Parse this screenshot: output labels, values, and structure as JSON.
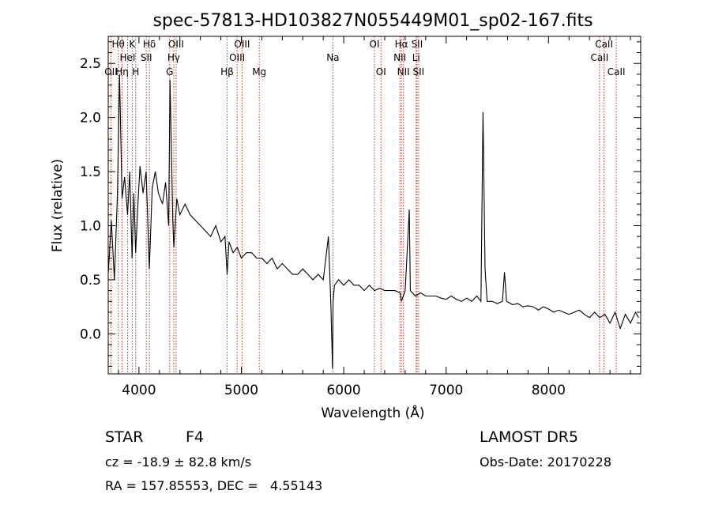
{
  "chart_data": {
    "type": "line",
    "title": "spec-57813-HD103827N055449M01_sp02-167.fits",
    "xlabel": "Wavelength (Å)",
    "ylabel": "Flux (relative)",
    "xlim": [
      3700,
      8900
    ],
    "ylim": [
      -0.37,
      2.75
    ],
    "xticks": [
      4000,
      5000,
      6000,
      7000,
      8000
    ],
    "xtick_labels": [
      "4000",
      "5000",
      "6000",
      "7000",
      "8000"
    ],
    "yticks": [
      0.0,
      0.5,
      1.0,
      1.5,
      2.0,
      2.5
    ],
    "ytick_labels": [
      "0.0",
      "0.5",
      "1.0",
      "1.5",
      "2.0",
      "2.5"
    ],
    "grid": false,
    "line_color": "#000000",
    "marker_color": "#c0392b",
    "series": [
      {
        "x": [
          3700,
          3730,
          3760,
          3790,
          3810,
          3835,
          3860,
          3889,
          3910,
          3933,
          3950,
          3968,
          3990,
          4010,
          4040,
          4070,
          4101,
          4130,
          4160,
          4190,
          4230,
          4260,
          4290,
          4303,
          4330,
          4340,
          4370,
          4400,
          4450,
          4500,
          4550,
          4600,
          4650,
          4700,
          4750,
          4800,
          4840,
          4861,
          4880,
          4920,
          4960,
          5000,
          5050,
          5100,
          5150,
          5200,
          5250,
          5300,
          5350,
          5400,
          5450,
          5500,
          5550,
          5600,
          5650,
          5700,
          5750,
          5800,
          5850,
          5875,
          5890,
          5896,
          5910,
          5950,
          6000,
          6050,
          6100,
          6150,
          6200,
          6250,
          6300,
          6350,
          6400,
          6450,
          6500,
          6550,
          6563,
          6600,
          6640,
          6650,
          6700,
          6750,
          6800,
          6850,
          6900,
          6950,
          7000,
          7050,
          7100,
          7150,
          7200,
          7250,
          7300,
          7340,
          7360,
          7380,
          7400,
          7450,
          7500,
          7550,
          7570,
          7590,
          7650,
          7700,
          7750,
          7800,
          7850,
          7900,
          7950,
          8000,
          8050,
          8100,
          8150,
          8200,
          8250,
          8300,
          8350,
          8400,
          8450,
          8500,
          8550,
          8600,
          8650,
          8700,
          8750,
          8800,
          8850,
          8880
        ],
        "y": [
          0.55,
          1.05,
          0.5,
          1.3,
          2.4,
          1.25,
          1.45,
          1.1,
          1.5,
          0.7,
          1.3,
          0.75,
          1.2,
          1.55,
          1.3,
          1.5,
          0.6,
          1.35,
          1.5,
          1.3,
          1.2,
          1.4,
          1.0,
          2.35,
          1.05,
          0.8,
          1.25,
          1.1,
          1.2,
          1.1,
          1.05,
          1.0,
          0.95,
          0.9,
          1.0,
          0.85,
          0.9,
          0.55,
          0.85,
          0.75,
          0.8,
          0.7,
          0.75,
          0.75,
          0.7,
          0.7,
          0.65,
          0.7,
          0.6,
          0.65,
          0.6,
          0.55,
          0.55,
          0.6,
          0.55,
          0.5,
          0.55,
          0.5,
          0.9,
          0.25,
          -0.32,
          0.3,
          0.45,
          0.5,
          0.45,
          0.5,
          0.45,
          0.45,
          0.4,
          0.45,
          0.4,
          0.42,
          0.4,
          0.4,
          0.4,
          0.38,
          0.3,
          0.4,
          1.15,
          0.4,
          0.35,
          0.38,
          0.35,
          0.35,
          0.35,
          0.33,
          0.32,
          0.35,
          0.32,
          0.3,
          0.33,
          0.3,
          0.35,
          0.3,
          2.05,
          0.6,
          0.3,
          0.3,
          0.28,
          0.3,
          0.57,
          0.3,
          0.27,
          0.28,
          0.25,
          0.26,
          0.25,
          0.22,
          0.25,
          0.23,
          0.2,
          0.22,
          0.2,
          0.18,
          0.2,
          0.22,
          0.18,
          0.15,
          0.2,
          0.15,
          0.18,
          0.1,
          0.2,
          0.05,
          0.18,
          0.1,
          0.2,
          0.15
        ]
      }
    ],
    "lines": [
      {
        "w": 3727,
        "label": "OII",
        "row": 3
      },
      {
        "w": 3798,
        "label": "Hθ",
        "row": 1
      },
      {
        "w": 3835,
        "label": "Hη",
        "row": 3
      },
      {
        "w": 3889,
        "label": "HeI",
        "row": 2
      },
      {
        "w": 3934,
        "label": "K",
        "row": 1
      },
      {
        "w": 3968,
        "label": "H",
        "row": 3
      },
      {
        "w": 4072,
        "label": "SII",
        "row": 2
      },
      {
        "w": 4102,
        "label": "Hδ",
        "row": 1
      },
      {
        "w": 4300,
        "label": "G",
        "row": 3
      },
      {
        "w": 4340,
        "label": "Hγ",
        "row": 2
      },
      {
        "w": 4363,
        "label": "OIII",
        "row": 1
      },
      {
        "w": 4861,
        "label": "Hβ",
        "row": 3
      },
      {
        "w": 4959,
        "label": "OIII",
        "row": 2
      },
      {
        "w": 5007,
        "label": "OIII",
        "row": 1
      },
      {
        "w": 5175,
        "label": "Mg",
        "row": 3
      },
      {
        "w": 5894,
        "label": "Na",
        "row": 2
      },
      {
        "w": 6300,
        "label": "OI",
        "row": 1
      },
      {
        "w": 6364,
        "label": "OI",
        "row": 3
      },
      {
        "w": 6548,
        "label": "NII",
        "row": 2
      },
      {
        "w": 6563,
        "label": "Hα",
        "row": 1
      },
      {
        "w": 6583,
        "label": "NII",
        "row": 3
      },
      {
        "w": 6707,
        "label": "Li",
        "row": 2
      },
      {
        "w": 6716,
        "label": "SII",
        "row": 1
      },
      {
        "w": 6731,
        "label": "SII",
        "row": 3
      },
      {
        "w": 8498,
        "label": "CaII",
        "row": 2
      },
      {
        "w": 8542,
        "label": "CaII",
        "row": 1
      },
      {
        "w": 8662,
        "label": "CaII",
        "row": 3
      }
    ]
  },
  "info": {
    "class_label": "STAR",
    "subclass": "F4",
    "survey": "LAMOST DR5",
    "cz": "cz = -18.9 ± 82.8 km/s",
    "obs_date": "Obs-Date: 20170228",
    "coords": "RA = 157.85553, DEC =   4.55143"
  }
}
